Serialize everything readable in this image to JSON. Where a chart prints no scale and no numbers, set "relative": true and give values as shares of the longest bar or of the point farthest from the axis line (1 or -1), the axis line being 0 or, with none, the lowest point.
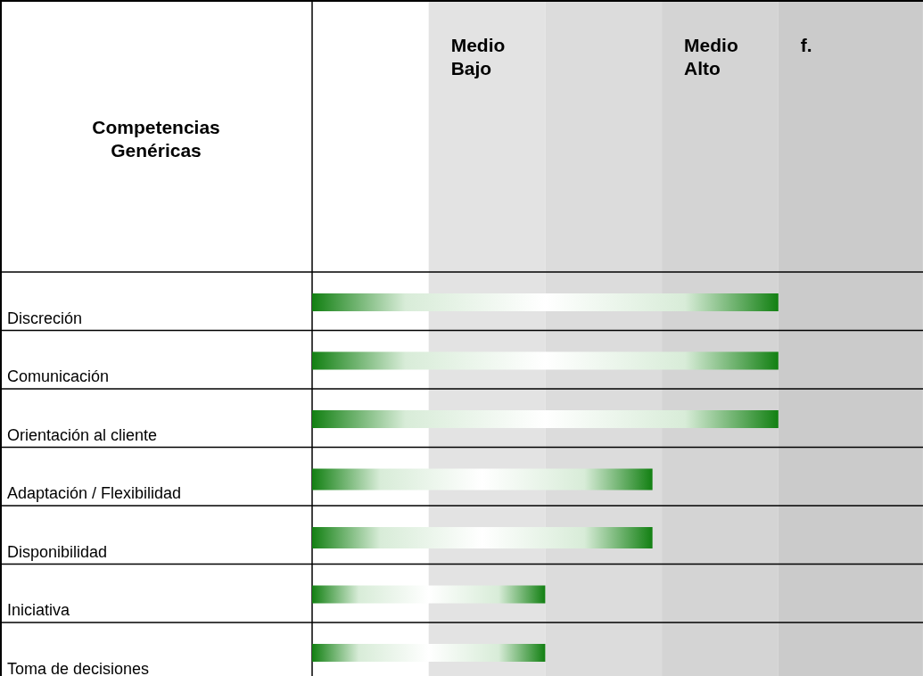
{
  "chart_data": {
    "type": "bar",
    "orientation": "horizontal",
    "relative": true,
    "categories": [
      "Discreción",
      "Comunicación",
      "Orientación al cliente",
      "Adaptación / Flexibilidad",
      "Disponibilidad",
      "Iniciativa",
      "Toma de decisiones"
    ],
    "values": [
      1,
      1,
      1,
      0.73,
      0.73,
      0.5,
      0.5
    ],
    "color": "#128012",
    "bands": [
      {
        "axis": "x",
        "from": 0.25,
        "to": 0.5,
        "label": "Medio Bajo",
        "color": "#e3e3e3"
      },
      {
        "axis": "x",
        "from": 0.5,
        "to": 0.75,
        "color": "#dcdcdc"
      },
      {
        "axis": "x",
        "from": 0.75,
        "to": 1,
        "label": "Medio Alto",
        "color": "#d4d4d4"
      },
      {
        "axis": "x",
        "from": 1,
        "to": 1.31,
        "label": "f.",
        "color": "#cbcbcb"
      }
    ],
    "annotations": [
      "Competencias Genéricas"
    ]
  }
}
